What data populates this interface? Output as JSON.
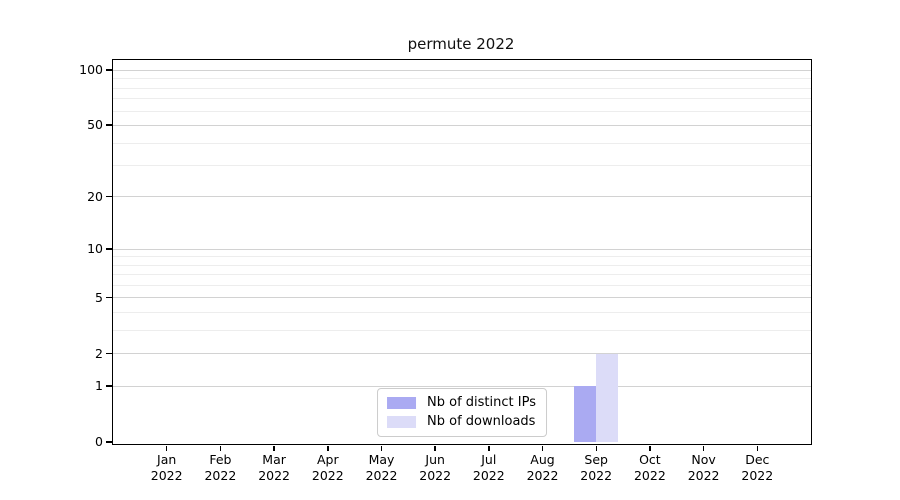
{
  "chart_data": {
    "type": "bar",
    "title": "permute 2022",
    "categories": [
      "Jan",
      "Feb",
      "Mar",
      "Apr",
      "May",
      "Jun",
      "Jul",
      "Aug",
      "Sep",
      "Oct",
      "Nov",
      "Dec"
    ],
    "year_label": "2022",
    "series": [
      {
        "name": "Nb of distinct IPs",
        "color": "#aaaaf2",
        "values": [
          0,
          0,
          0,
          0,
          0,
          0,
          0,
          0,
          1,
          0,
          0,
          0
        ]
      },
      {
        "name": "Nb of downloads",
        "color": "#dcdcf8",
        "values": [
          0,
          0,
          0,
          0,
          0,
          0,
          0,
          0,
          2,
          0,
          0,
          0
        ]
      }
    ],
    "yscale": "log10(1+y)",
    "yticks": [
      0,
      1,
      2,
      5,
      10,
      20,
      50,
      100
    ],
    "minor_yticks": [
      3,
      4,
      6,
      7,
      8,
      9,
      30,
      40,
      60,
      70,
      80,
      90
    ],
    "ylim": [
      0,
      115
    ],
    "xlabel": "",
    "ylabel": "",
    "grid": "horizontal",
    "legend_position": "lower center"
  },
  "colors": {
    "background": "#ffffff",
    "axis": "#000000",
    "major_grid": "#d2d2d2",
    "minor_grid": "#ededed",
    "legend_border": "#cccccc"
  }
}
